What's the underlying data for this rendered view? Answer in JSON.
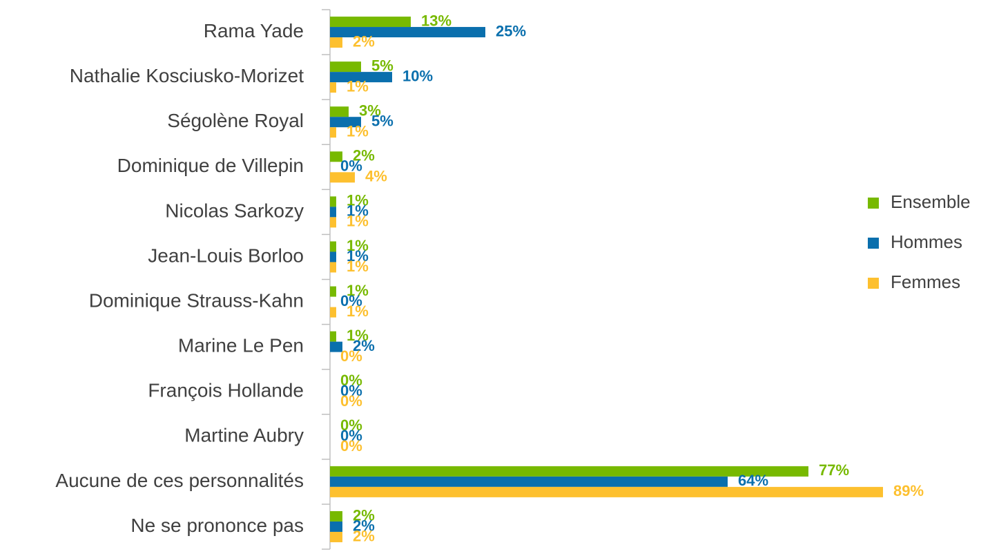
{
  "chart_data": {
    "type": "bar",
    "orientation": "horizontal",
    "categories": [
      "Rama Yade",
      "Nathalie Kosciusko-Morizet",
      "Ségolène Royal",
      "Dominique de Villepin",
      "Nicolas Sarkozy",
      "Jean-Louis Borloo",
      "Dominique Strauss-Kahn",
      "Marine Le Pen",
      "François Hollande",
      "Martine Aubry",
      "Aucune de ces personnalités",
      "Ne se prononce pas"
    ],
    "series": [
      {
        "name": "Ensemble",
        "color": "#77b900",
        "values": [
          13,
          5,
          3,
          2,
          1,
          1,
          1,
          1,
          0,
          0,
          77,
          2
        ],
        "value_labels": [
          "13%",
          "5%",
          "3%",
          "2%",
          "1%",
          "1%",
          "1%",
          "1%",
          "0%",
          "0%",
          "77%",
          "2%"
        ]
      },
      {
        "name": "Hommes",
        "color": "#0a6fad",
        "values": [
          25,
          10,
          5,
          0,
          1,
          1,
          0,
          2,
          0,
          0,
          64,
          2
        ],
        "value_labels": [
          "25%",
          "10%",
          "5%",
          "0%",
          "1%",
          "1%",
          "0%",
          "2%",
          "0%",
          "0%",
          "64%",
          "2%"
        ]
      },
      {
        "name": "Femmes",
        "color": "#fdc02f",
        "values": [
          2,
          1,
          1,
          4,
          1,
          1,
          1,
          0,
          0,
          0,
          89,
          2
        ],
        "value_labels": [
          "2%",
          "1%",
          "1%",
          "4%",
          "1%",
          "1%",
          "1%",
          "0%",
          "0%",
          "0%",
          "89%",
          "2%"
        ]
      }
    ],
    "legend": "right"
  }
}
